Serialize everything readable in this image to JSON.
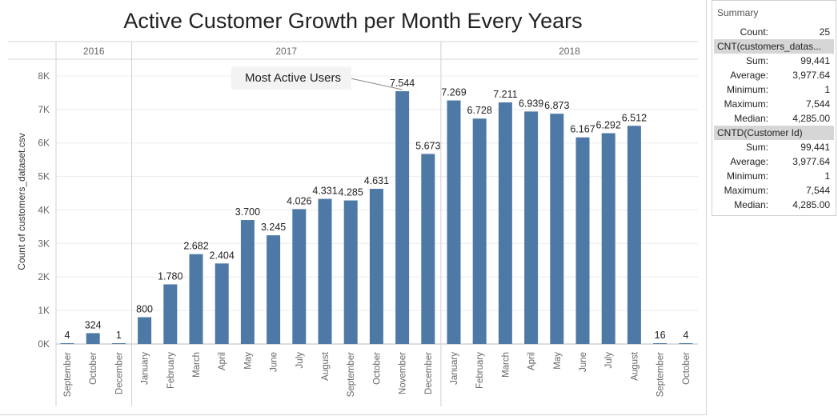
{
  "chart_data": {
    "type": "bar",
    "title": "Active Customer Growth per Month Every Years",
    "ylabel": "Count of customers_dataset.csv",
    "ylim": [
      0,
      8500
    ],
    "y_ticks": [
      0,
      1000,
      2000,
      3000,
      4000,
      5000,
      6000,
      7000,
      8000
    ],
    "y_tick_labels": [
      "0K",
      "1K",
      "2K",
      "3K",
      "4K",
      "5K",
      "6K",
      "7K",
      "8K"
    ],
    "grid": true,
    "groups": [
      {
        "year": "2016",
        "months": [
          "September",
          "October",
          "December"
        ],
        "values": [
          4,
          324,
          1
        ],
        "labels": [
          "4",
          "324",
          "1"
        ]
      },
      {
        "year": "2017",
        "months": [
          "January",
          "February",
          "March",
          "April",
          "May",
          "June",
          "July",
          "August",
          "September",
          "October",
          "November",
          "December"
        ],
        "values": [
          800,
          1780,
          2682,
          2404,
          3700,
          3245,
          4026,
          4331,
          4285,
          4631,
          7544,
          5673
        ],
        "labels": [
          "800",
          "1.780",
          "2.682",
          "2.404",
          "3.700",
          "3.245",
          "4.026",
          "4.331",
          "4.285",
          "4.631",
          "7.544",
          "5.673"
        ]
      },
      {
        "year": "2018",
        "months": [
          "January",
          "February",
          "March",
          "April",
          "May",
          "June",
          "July",
          "August",
          "September",
          "October"
        ],
        "values": [
          7269,
          6728,
          7211,
          6939,
          6873,
          6167,
          6292,
          6512,
          16,
          4
        ],
        "labels": [
          "7.269",
          "6.728",
          "7.211",
          "6.939",
          "6.873",
          "6.167",
          "6.292",
          "6.512",
          "16",
          "4"
        ]
      }
    ],
    "annotation": {
      "text": "Most Active Users",
      "target_year": "2017",
      "target_month": "November"
    },
    "bar_color": "#4e79a7"
  },
  "summary": {
    "title": "Summary",
    "count_label": "Count:",
    "count_value": "25",
    "sections": [
      {
        "header": "CNT(customers_datas...",
        "rows": [
          {
            "label": "Sum:",
            "value": "99,441"
          },
          {
            "label": "Average:",
            "value": "3,977.64"
          },
          {
            "label": "Minimum:",
            "value": "1"
          },
          {
            "label": "Maximum:",
            "value": "7,544"
          },
          {
            "label": "Median:",
            "value": "4,285.00"
          }
        ]
      },
      {
        "header": "CNTD(Customer Id)",
        "rows": [
          {
            "label": "Sum:",
            "value": "99,441"
          },
          {
            "label": "Average:",
            "value": "3,977.64"
          },
          {
            "label": "Minimum:",
            "value": "1"
          },
          {
            "label": "Maximum:",
            "value": "7,544"
          },
          {
            "label": "Median:",
            "value": "4,285.00"
          }
        ]
      }
    ]
  }
}
